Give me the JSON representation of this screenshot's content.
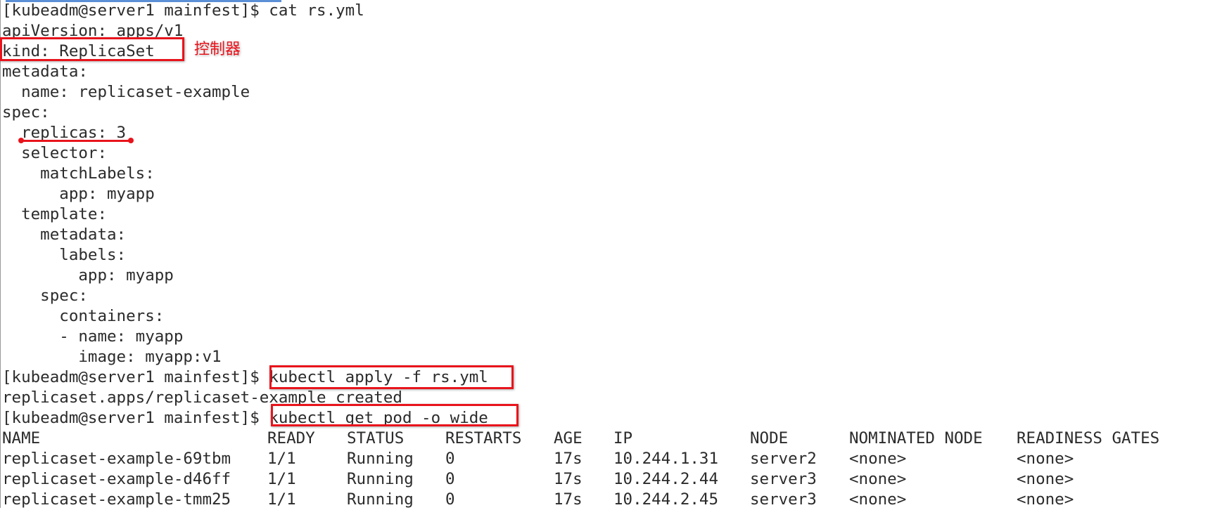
{
  "terminal": {
    "lines": [
      "[kubeadm@server1 mainfest]$ cat rs.yml",
      "apiVersion: apps/v1",
      "kind: ReplicaSet",
      "metadata:",
      "  name: replicaset-example",
      "spec:",
      "  replicas: 3",
      "  selector:",
      "    matchLabels:",
      "      app: myapp",
      "  template:",
      "    metadata:",
      "      labels:",
      "        app: myapp",
      "    spec:",
      "      containers:",
      "      - name: myapp",
      "        image: myapp:v1",
      "[kubeadm@server1 mainfest]$ kubectl apply -f rs.yml",
      "replicaset.apps/replicaset-example created",
      "[kubeadm@server1 mainfest]$ kubectl get pod -o wide"
    ],
    "table": {
      "headers": [
        "NAME",
        "READY",
        "STATUS",
        "RESTARTS",
        "AGE",
        "IP",
        "NODE",
        "NOMINATED NODE",
        "READINESS GATES"
      ],
      "rows": [
        [
          "replicaset-example-69tbm",
          "1/1",
          "Running",
          "0",
          "17s",
          "10.244.1.31",
          "server2",
          "<none>",
          "<none>"
        ],
        [
          "replicaset-example-d46ff",
          "1/1",
          "Running",
          "0",
          "17s",
          "10.244.2.44",
          "server3",
          "<none>",
          "<none>"
        ],
        [
          "replicaset-example-tmm25",
          "1/1",
          "Running",
          "0",
          "17s",
          "10.244.2.45",
          "server3",
          "<none>",
          "<none>"
        ]
      ]
    }
  },
  "annotations": {
    "kind_note": "控制器",
    "highlight_color": "#e8141c"
  }
}
